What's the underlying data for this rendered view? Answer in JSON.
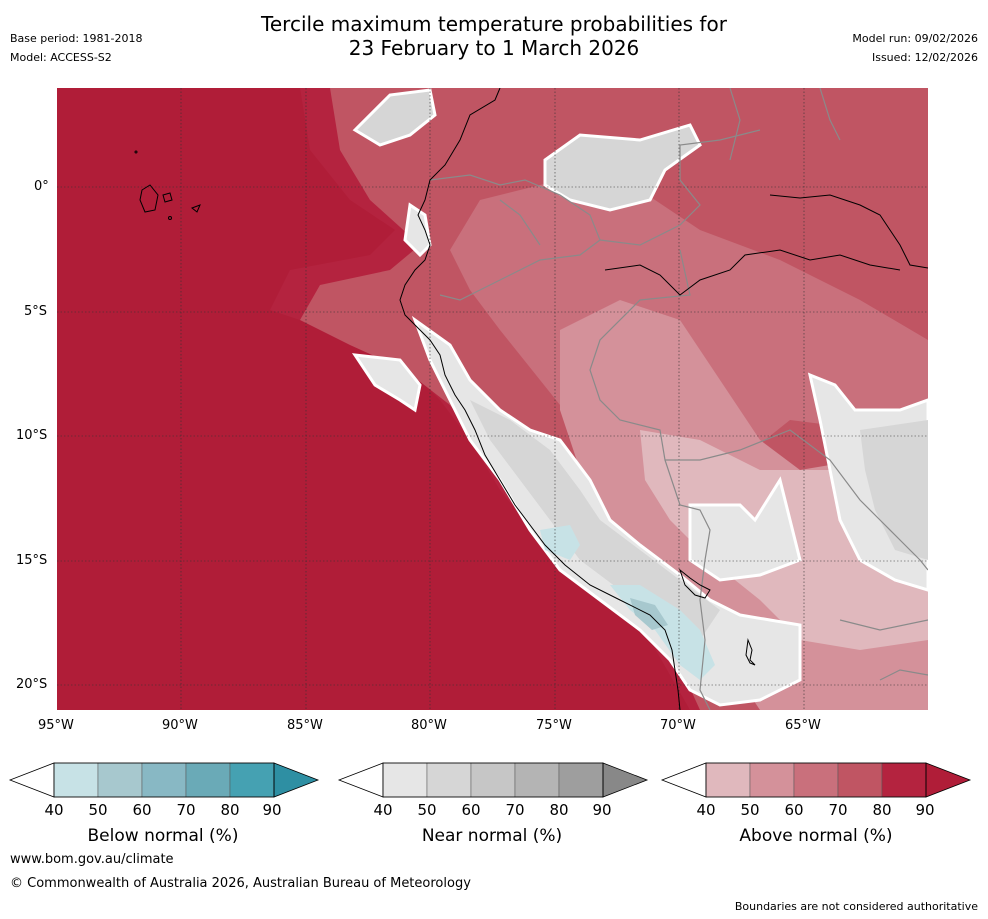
{
  "header": {
    "title_line1": "Tercile maximum temperature probabilities for",
    "title_line2": "23 February to 1 March 2026",
    "base_period": "Base period: 1981-2018",
    "model": "Model: ACCESS-S2",
    "model_run": "Model run: 09/02/2026",
    "issued": "Issued: 12/02/2026"
  },
  "map": {
    "lat_labels": [
      "0°",
      "5°S",
      "10°S",
      "15°S",
      "20°S"
    ],
    "lon_labels": [
      "95°W",
      "90°W",
      "85°W",
      "80°W",
      "75°W",
      "70°W",
      "65°W"
    ],
    "colors": {
      "above": [
        "#e0b8bd",
        "#d4919a",
        "#c9707c",
        "#c05563",
        "#b4233f",
        "#b01d38"
      ],
      "near": [
        "#e6e6e6",
        "#d6d6d6",
        "#c6c6c6",
        "#b4b4b4",
        "#9e9e9e",
        "#888888"
      ],
      "below": [
        "#c7e2e6",
        "#a7c8ce",
        "#88b8c4",
        "#6aaab7",
        "#45a1b2",
        "#2e8fa3"
      ]
    }
  },
  "legends": [
    {
      "title": "Below normal (%)",
      "ticks": [
        "40",
        "50",
        "60",
        "70",
        "80",
        "90"
      ]
    },
    {
      "title": "Near normal (%)",
      "ticks": [
        "40",
        "50",
        "60",
        "70",
        "80",
        "90"
      ]
    },
    {
      "title": "Above normal (%)",
      "ticks": [
        "40",
        "50",
        "60",
        "70",
        "80",
        "90"
      ]
    }
  ],
  "footer": {
    "website": "www.bom.gov.au/climate",
    "copyright": "© Commonwealth of Australia 2026, Australian Bureau of Meteorology",
    "disclaimer": "Boundaries are not considered authoritative"
  }
}
